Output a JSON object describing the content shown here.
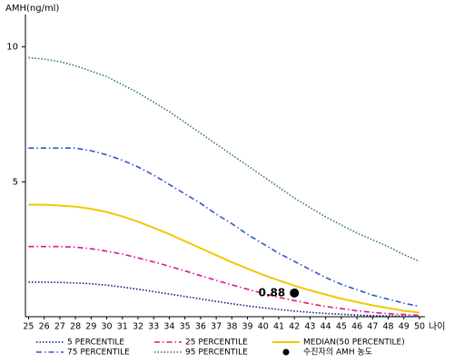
{
  "chart_data": {
    "type": "line",
    "y_label": "AMH(ng/ml)",
    "x_label": "나이",
    "x": [
      25,
      26,
      27,
      28,
      29,
      30,
      31,
      32,
      33,
      34,
      35,
      36,
      37,
      38,
      39,
      40,
      41,
      42,
      43,
      44,
      45,
      46,
      47,
      48,
      49,
      50
    ],
    "xlim": [
      24.8,
      50
    ],
    "ylim": [
      0,
      11.2
    ],
    "yticks": [
      5,
      10
    ],
    "series": [
      {
        "name": " 5 PERCENTILE",
        "color": "#0a1a80",
        "dash": "1.5,2",
        "values": [
          1.28,
          1.28,
          1.27,
          1.25,
          1.22,
          1.17,
          1.1,
          1.02,
          0.93,
          0.84,
          0.75,
          0.66,
          0.57,
          0.48,
          0.4,
          0.33,
          0.27,
          0.21,
          0.16,
          0.12,
          0.09,
          0.06,
          0.04,
          0.03,
          0.02,
          0.01
        ]
      },
      {
        "name": "75 PERCENTILE",
        "color": "#3355cc",
        "dash": "6,3,1.5,3",
        "values": [
          6.25,
          6.25,
          6.25,
          6.25,
          6.15,
          6.0,
          5.8,
          5.55,
          5.25,
          4.9,
          4.55,
          4.2,
          3.8,
          3.45,
          3.05,
          2.7,
          2.35,
          2.05,
          1.75,
          1.45,
          1.2,
          1.0,
          0.8,
          0.65,
          0.5,
          0.38
        ]
      },
      {
        "name": "25 PERCENTILE",
        "color": "#e0148c",
        "dash": "6,3,1.5,3",
        "values": [
          2.6,
          2.6,
          2.6,
          2.58,
          2.52,
          2.43,
          2.32,
          2.18,
          2.03,
          1.87,
          1.7,
          1.52,
          1.35,
          1.18,
          1.02,
          0.86,
          0.72,
          0.6,
          0.48,
          0.38,
          0.3,
          0.22,
          0.16,
          0.11,
          0.08,
          0.05
        ]
      },
      {
        "name": "95 PERCENTILE",
        "color": "#2e7d4f",
        "dash": "1.5,2",
        "values": [
          9.6,
          9.55,
          9.45,
          9.3,
          9.1,
          8.9,
          8.6,
          8.3,
          7.95,
          7.6,
          7.2,
          6.8,
          6.4,
          6.0,
          5.6,
          5.2,
          4.8,
          4.4,
          4.05,
          3.7,
          3.4,
          3.1,
          2.85,
          2.6,
          2.3,
          2.05
        ]
      },
      {
        "name": "MEDIAN(50 PERCENTILE)",
        "color": "#f0c800",
        "dash": "none",
        "values": [
          4.15,
          4.15,
          4.12,
          4.08,
          4.0,
          3.88,
          3.72,
          3.52,
          3.3,
          3.06,
          2.8,
          2.54,
          2.28,
          2.02,
          1.78,
          1.55,
          1.35,
          1.15,
          0.98,
          0.82,
          0.67,
          0.54,
          0.42,
          0.32,
          0.22,
          0.15
        ]
      }
    ],
    "marker": {
      "name": "수진자의 AMH 농도",
      "color": "#000000",
      "x": 42,
      "y": 0.88
    }
  }
}
